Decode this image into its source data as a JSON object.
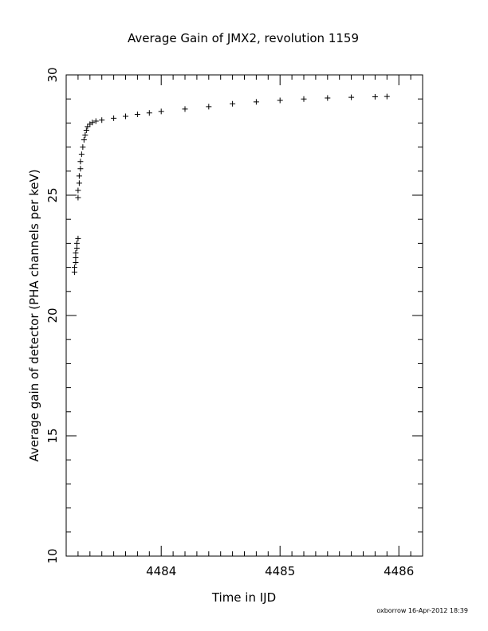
{
  "chart_data": {
    "type": "scatter",
    "title": "Average Gain of JMX2, revolution 1159",
    "xlabel": "Time in IJD",
    "ylabel": "Average gain of detector (PHA channels per keV)",
    "xlim": [
      4483.2,
      4486.2
    ],
    "ylim": [
      10,
      30
    ],
    "xticks": [
      4484,
      4485,
      4486
    ],
    "xtick_labels": [
      "4484",
      "4485",
      "4486"
    ],
    "yticks": [
      10,
      15,
      20,
      25,
      30
    ],
    "ytick_labels": [
      "10",
      "15",
      "20",
      "25",
      "30"
    ],
    "marker": "+",
    "grid": false,
    "series": [
      {
        "x": [
          4483.27,
          4483.27,
          4483.28,
          4483.28,
          4483.28,
          4483.29,
          4483.29,
          4483.3,
          4483.3,
          4483.3,
          4483.31,
          4483.31,
          4483.32,
          4483.32,
          4483.33,
          4483.34,
          4483.35,
          4483.36,
          4483.37,
          4483.38,
          4483.4,
          4483.42,
          4483.45,
          4483.5,
          4483.6,
          4483.7,
          4483.8,
          4483.9,
          4484.0,
          4484.2,
          4484.4,
          4484.6,
          4484.8,
          4485.0,
          4485.2,
          4485.4,
          4485.6,
          4485.8,
          4485.9
        ],
        "y": [
          21.8,
          22.0,
          22.2,
          22.4,
          22.6,
          22.8,
          23.0,
          23.2,
          24.9,
          25.2,
          25.5,
          25.8,
          26.1,
          26.4,
          26.7,
          27.0,
          27.3,
          27.5,
          27.7,
          27.85,
          27.95,
          28.02,
          28.08,
          28.12,
          28.2,
          28.28,
          28.36,
          28.42,
          28.48,
          28.58,
          28.68,
          28.8,
          28.88,
          28.94,
          29.0,
          29.04,
          29.07,
          29.09,
          29.1
        ]
      }
    ]
  },
  "footer": {
    "stamp": "oxborrow 16-Apr-2012 18:39"
  }
}
